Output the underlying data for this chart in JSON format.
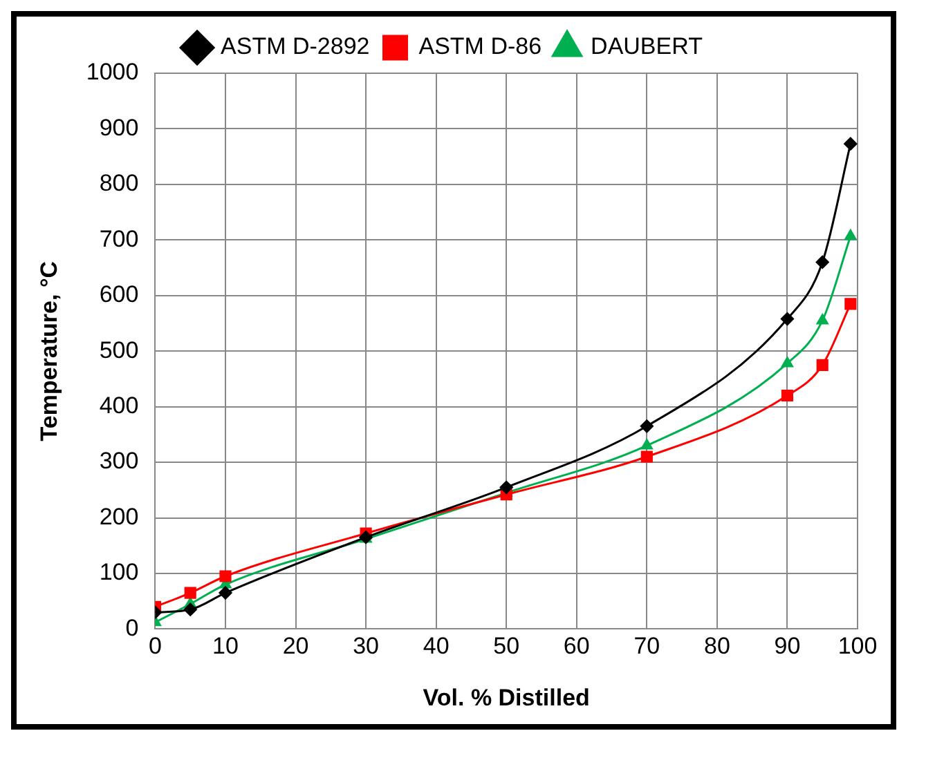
{
  "chart_data": {
    "type": "line",
    "xlabel": "Vol. % Distilled",
    "ylabel": "Temperature, °C",
    "xlim": [
      0,
      100
    ],
    "xticks": [
      0,
      10,
      20,
      30,
      40,
      50,
      60,
      70,
      80,
      90,
      100
    ],
    "ylim": [
      0,
      1000
    ],
    "yticks": [
      0,
      100,
      200,
      300,
      400,
      500,
      600,
      700,
      800,
      900,
      1000
    ],
    "grid": true,
    "legend": "top",
    "x": [
      0,
      5,
      10,
      30,
      50,
      70,
      90,
      95,
      99
    ],
    "series": [
      {
        "name": "ASTM D-2892",
        "color": "#000000",
        "marker": "diamond",
        "values": [
          30,
          35,
          65,
          165,
          255,
          365,
          558,
          660,
          873
        ]
      },
      {
        "name": "ASTM D-86",
        "color": "#ff0000",
        "marker": "square",
        "values": [
          40,
          65,
          95,
          172,
          242,
          310,
          420,
          475,
          585
        ]
      },
      {
        "name": "DAUBERT",
        "color": "#00b050",
        "marker": "triangle",
        "values": [
          12,
          45,
          80,
          162,
          245,
          330,
          478,
          555,
          707
        ]
      }
    ]
  }
}
